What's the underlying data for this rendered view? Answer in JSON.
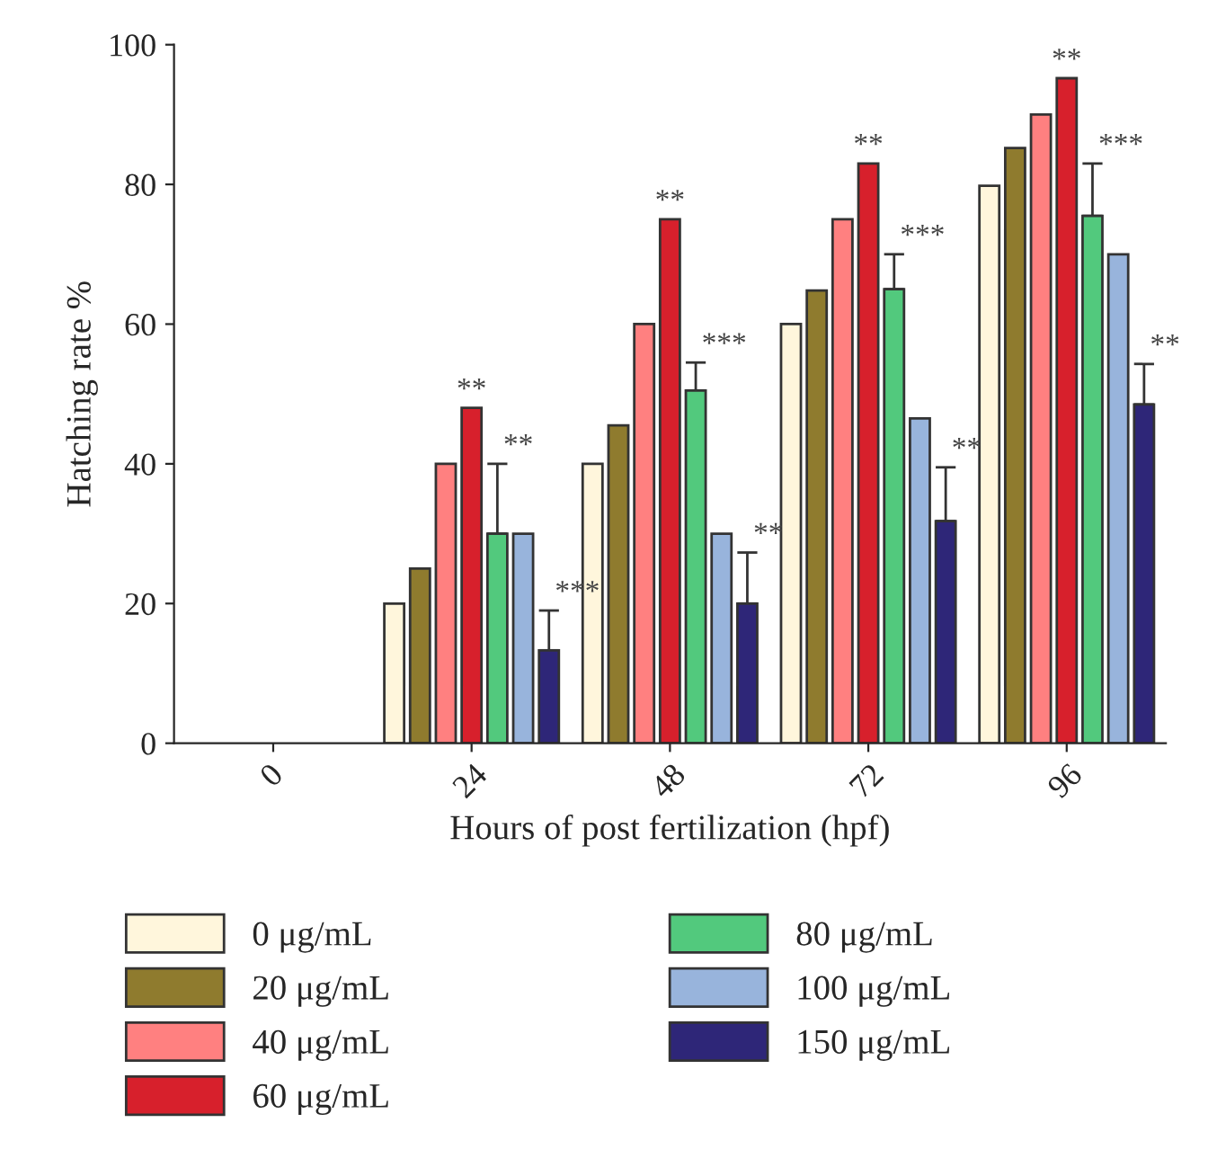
{
  "chart_data": {
    "type": "bar",
    "xlabel": "Hours of post fertilization (hpf)",
    "ylabel": "Hatching rate %",
    "categories": [
      "0",
      "24",
      "48",
      "72",
      "96"
    ],
    "ylim": [
      0,
      100
    ],
    "yticks": [
      0,
      20,
      40,
      60,
      80,
      100
    ],
    "grid": false,
    "legend": "bottom",
    "series": [
      {
        "name": "0 μg/mL",
        "color": "#fff6dc",
        "values": [
          0,
          20,
          40,
          60,
          79.8
        ]
      },
      {
        "name": "20 μg/mL",
        "color": "#8f7b2e",
        "values": [
          0,
          25,
          45.5,
          64.8,
          85.2
        ]
      },
      {
        "name": "40 μg/mL",
        "color": "#ff8080",
        "values": [
          0,
          40,
          60,
          75,
          90
        ]
      },
      {
        "name": "60 μg/mL",
        "color": "#d7202c",
        "values": [
          0,
          48,
          75,
          83,
          95.2
        ],
        "value_labels": [
          null,
          "**",
          "**",
          "**",
          "**"
        ]
      },
      {
        "name": "80 μg/mL",
        "color": "#52c97d",
        "values": [
          0,
          30,
          50.5,
          65,
          75.5
        ],
        "errors": [
          null,
          [
            30,
            40
          ],
          [
            50.5,
            54.5
          ],
          [
            65,
            70
          ],
          [
            75.5,
            83
          ]
        ],
        "value_labels": [
          null,
          "**",
          "***",
          "***",
          "***"
        ]
      },
      {
        "name": "100 μg/mL",
        "color": "#98b4dc",
        "values": [
          0,
          30,
          30,
          46.5,
          70
        ]
      },
      {
        "name": "150 μg/mL",
        "color": "#2e2678",
        "values": [
          0,
          13.3,
          20,
          31.8,
          48.5
        ],
        "errors": [
          null,
          [
            13.3,
            19
          ],
          [
            20,
            27.3
          ],
          [
            31.8,
            39.5
          ],
          [
            48.5,
            54.3
          ]
        ],
        "value_labels": [
          null,
          "***",
          "**",
          "**",
          "**"
        ]
      }
    ]
  }
}
